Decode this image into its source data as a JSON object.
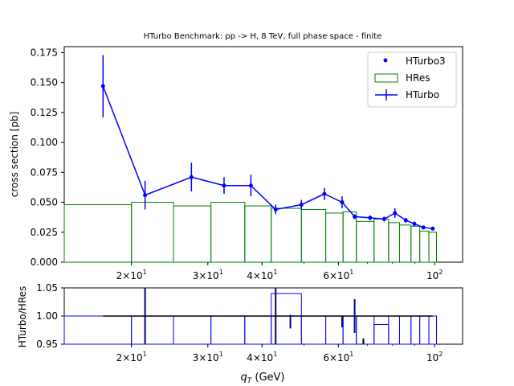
{
  "chart_data": [
    {
      "type": "bar",
      "title": "HTurbo Benchmark: pp -> H, 8 TeV, full phase space - finite",
      "xlabel": "",
      "ylabel": "cross section [pb]",
      "xscale": "log",
      "xlim": [
        14,
        116
      ],
      "ylim": [
        0,
        0.18
      ],
      "yticks": [
        0.0,
        0.025,
        0.05,
        0.075,
        0.1,
        0.125,
        0.15,
        0.175
      ],
      "ytick_labels": [
        "0.000",
        "0.025",
        "0.050",
        "0.075",
        "0.100",
        "0.125",
        "0.150",
        "0.175"
      ],
      "xticks": [
        20,
        30,
        40,
        60,
        100
      ],
      "xtick_labels": [
        {
          "base": "2",
          "sep": "×",
          "pow": "10",
          "exp": "1"
        },
        {
          "base": "3",
          "sep": "×",
          "pow": "10",
          "exp": "1"
        },
        {
          "base": "4",
          "sep": "×",
          "pow": "10",
          "exp": "1"
        },
        {
          "base": "6",
          "sep": "×",
          "pow": "10",
          "exp": "1"
        },
        {
          "base": "",
          "sep": "",
          "pow": "10",
          "exp": "2"
        }
      ],
      "legend_position": "top-right",
      "legend": [
        "HTurbo3",
        "HRes",
        "HTurbo"
      ],
      "colors": {
        "hturbo": "#0000ff",
        "hres": "#008000",
        "ratio": "#0000ff",
        "unity": "#000000"
      },
      "series": [
        {
          "name": "HRes",
          "style": "step",
          "bin_edges": [
            14,
            20,
            25,
            30.5,
            36.5,
            42,
            49.3,
            56.1,
            61.5,
            66,
            72.5,
            78.3,
            83,
            88.2,
            92.4,
            97,
            101
          ],
          "values": [
            0.048,
            0.05,
            0.047,
            0.05,
            0.047,
            0.045,
            0.044,
            0.041,
            0.042,
            0.034,
            0.036,
            0.033,
            0.031,
            0.03,
            0.026,
            0.025,
            0.022
          ]
        },
        {
          "name": "HTurbo",
          "style": "line-errorbar",
          "x": [
            17.2,
            21.5,
            27.5,
            32.7,
            37.7,
            43.0,
            49.3,
            55.7,
            61.2,
            65.4,
            71.0,
            76.5,
            81.0,
            85.8,
            89.8,
            94.2,
            99.0
          ],
          "values": [
            0.147,
            0.056,
            0.071,
            0.064,
            0.064,
            0.044,
            0.048,
            0.057,
            0.05,
            0.038,
            0.037,
            0.036,
            0.041,
            0.035,
            0.032,
            0.029,
            0.028
          ],
          "errors": [
            0.026,
            0.012,
            0.012,
            0.007,
            0.009,
            0.004,
            0.004,
            0.005,
            0.005,
            0.002,
            0.002,
            0.002,
            0.004,
            0.002,
            0.002,
            0.001,
            0.001
          ]
        },
        {
          "name": "HTurbo3",
          "style": "markers",
          "x": [
            17.2,
            21.5,
            27.5,
            32.7,
            37.7,
            43.0,
            49.3,
            55.7,
            61.2,
            65.4,
            71.0,
            76.5,
            81.0,
            85.8,
            89.8,
            94.2,
            99.0
          ],
          "values": [
            0.147,
            0.056,
            0.071,
            0.064,
            0.064,
            0.044,
            0.048,
            0.057,
            0.05,
            0.038,
            0.037,
            0.036,
            0.041,
            0.035,
            0.032,
            0.029,
            0.028
          ]
        }
      ]
    },
    {
      "type": "bar",
      "title": "",
      "xlabel_main": "q",
      "xlabel_sub": "T",
      "xlabel_unit": " (GeV)",
      "ylabel": "HTurbo/HRes",
      "xscale": "log",
      "xlim": [
        14,
        116
      ],
      "ylim": [
        0.95,
        1.05
      ],
      "yticks": [
        0.95,
        1.0,
        1.05
      ],
      "ytick_labels": [
        "0.95",
        "1.00",
        "1.05"
      ],
      "xticks": [
        20,
        30,
        40,
        60,
        100
      ],
      "xtick_labels": [
        {
          "base": "2",
          "sep": "×",
          "pow": "10",
          "exp": "1"
        },
        {
          "base": "3",
          "sep": "×",
          "pow": "10",
          "exp": "1"
        },
        {
          "base": "4",
          "sep": "×",
          "pow": "10",
          "exp": "1"
        },
        {
          "base": "6",
          "sep": "×",
          "pow": "10",
          "exp": "1"
        },
        {
          "base": "",
          "sep": "",
          "pow": "10",
          "exp": "2"
        }
      ],
      "series": [
        {
          "name": "",
          "style": "step",
          "bin_edges": [
            14,
            20,
            25,
            30.5,
            36.5,
            42,
            49.3,
            56.1,
            61.5,
            66,
            72.5,
            78.3,
            83,
            88.2,
            92.4,
            97,
            101
          ],
          "values": [
            1.0,
            1.0,
            1.0,
            1.0,
            1.0,
            1.04,
            1.0,
            1.0,
            1.0,
            1.0,
            0.985,
            1.0,
            1.0,
            1.0,
            1.0,
            1.0,
            1.0
          ]
        },
        {
          "name": "",
          "style": "errorbars",
          "x": [
            17.2,
            21.5,
            27.5,
            32.7,
            37.7,
            43.0,
            46.5,
            49.3,
            55.7,
            61.2,
            65.4,
            68.5,
            71.0,
            76.5,
            81.0,
            85.8,
            89.8,
            94.2,
            99.0
          ],
          "values": [
            1.0,
            1.0,
            1.0,
            1.0,
            1.0,
            1.0,
            0.99,
            1.0,
            1.0,
            0.99,
            1.0,
            0.955,
            1.0,
            1.0,
            1.0,
            1.0,
            1.0,
            1.0,
            1.0
          ],
          "errors": [
            0.0,
            0.08,
            0.0,
            0.0,
            0.0,
            0.06,
            0.012,
            0.0,
            0.0,
            0.01,
            0.03,
            0.005,
            0.0,
            0.0,
            0.0,
            0.0,
            0.0,
            0.0,
            0.0
          ]
        },
        {
          "name": "",
          "style": "hline",
          "x_range": [
            17.2,
            99.0
          ],
          "value": 1.0
        }
      ]
    }
  ]
}
